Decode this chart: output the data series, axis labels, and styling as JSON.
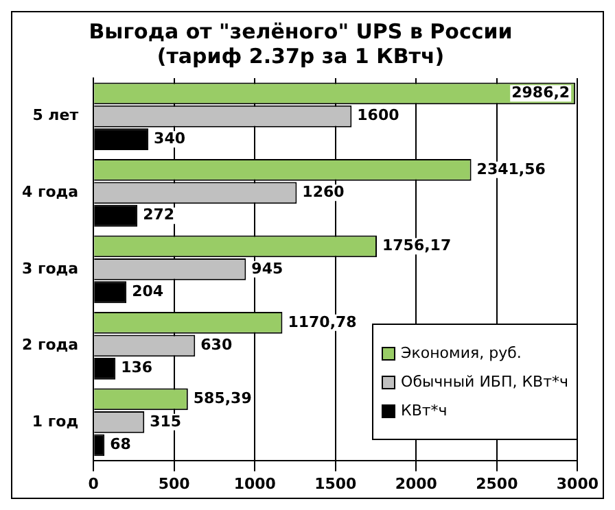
{
  "chart_data": {
    "type": "bar",
    "orientation": "horizontal",
    "title": "Выгода от \"зелёного\" UPS в России\n(тариф 2.37р за 1 КВтч)",
    "categories": [
      "5 лет",
      "4 года",
      "3 года",
      "2 года",
      "1 год"
    ],
    "series": [
      {
        "name": "Экономия, руб.",
        "color": "#99cc66",
        "values": [
          2986.2,
          2341.56,
          1756.17,
          1170.78,
          585.39
        ],
        "value_labels": [
          "2986,2",
          "2341,56",
          "1756,17",
          "1170,78",
          "585,39"
        ]
      },
      {
        "name": "Обычный ИБП, КВт*ч",
        "color": "#c0c0c0",
        "values": [
          1600,
          1260,
          945,
          630,
          315
        ],
        "value_labels": [
          "1600",
          "1260",
          "945",
          "630",
          "315"
        ]
      },
      {
        "name": "КВт*ч",
        "color": "#000000",
        "values": [
          340,
          272,
          204,
          136,
          68
        ],
        "value_labels": [
          "340",
          "272",
          "204",
          "136",
          "68"
        ]
      }
    ],
    "xlim": [
      0,
      3000
    ],
    "xticks": [
      0,
      500,
      1000,
      1500,
      2000,
      2500,
      3000
    ],
    "grid": "x",
    "legend": "bottom right"
  }
}
